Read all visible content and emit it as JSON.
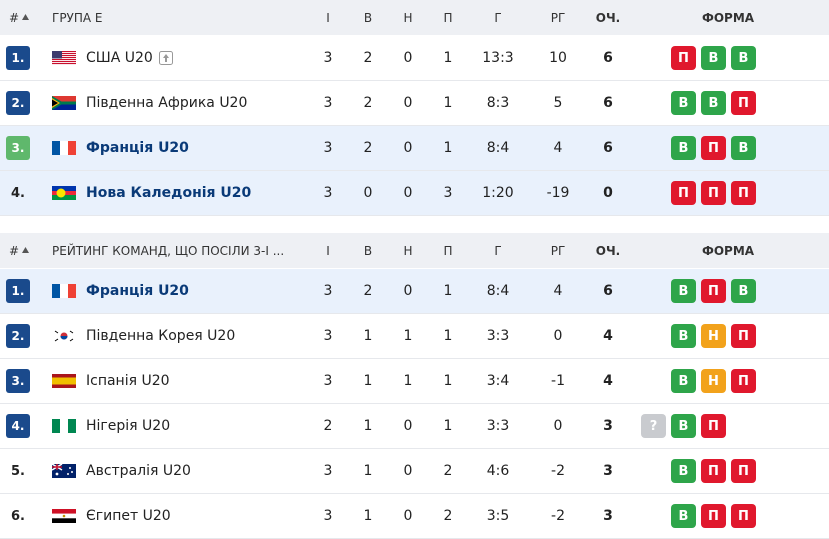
{
  "tables": [
    {
      "header": {
        "rank": "#",
        "title": "ГРУПА E",
        "cols": [
          "І",
          "В",
          "Н",
          "П",
          "Г",
          "РГ",
          "ОЧ.",
          "ФОРМА"
        ]
      },
      "rows": [
        {
          "rank": "1.",
          "team": "США U20",
          "stats": [
            "3",
            "2",
            "0",
            "1",
            "13:3",
            "10",
            "6"
          ],
          "form": [
            "П",
            "В",
            "В"
          ]
        },
        {
          "rank": "2.",
          "team": "Південна Африка U20",
          "stats": [
            "3",
            "2",
            "0",
            "1",
            "8:3",
            "5",
            "6"
          ],
          "form": [
            "В",
            "В",
            "П"
          ]
        },
        {
          "rank": "3.",
          "team": "Франція U20",
          "stats": [
            "3",
            "2",
            "0",
            "1",
            "8:4",
            "4",
            "6"
          ],
          "form": [
            "В",
            "П",
            "В"
          ]
        },
        {
          "rank": "4.",
          "team": "Нова Каледонія U20",
          "stats": [
            "3",
            "0",
            "0",
            "3",
            "1:20",
            "-19",
            "0"
          ],
          "form": [
            "П",
            "П",
            "П"
          ]
        }
      ]
    },
    {
      "header": {
        "rank": "#",
        "title": "РЕЙТИНГ КОМАНД, ЩО ПОСІЛИ 3-І ...",
        "cols": [
          "І",
          "В",
          "Н",
          "П",
          "Г",
          "РГ",
          "ОЧ.",
          "ФОРМА"
        ]
      },
      "rows": [
        {
          "rank": "1.",
          "team": "Франція U20",
          "stats": [
            "3",
            "2",
            "0",
            "1",
            "8:4",
            "4",
            "6"
          ],
          "form": [
            "В",
            "П",
            "В"
          ]
        },
        {
          "rank": "2.",
          "team": "Південна Корея U20",
          "stats": [
            "3",
            "1",
            "1",
            "1",
            "3:3",
            "0",
            "4"
          ],
          "form": [
            "В",
            "Н",
            "П"
          ]
        },
        {
          "rank": "3.",
          "team": "Іспанія U20",
          "stats": [
            "3",
            "1",
            "1",
            "1",
            "3:4",
            "-1",
            "4"
          ],
          "form": [
            "В",
            "Н",
            "П"
          ]
        },
        {
          "rank": "4.",
          "team": "Нігерія U20",
          "stats": [
            "2",
            "1",
            "0",
            "1",
            "3:3",
            "0",
            "3"
          ],
          "form": [
            "?",
            "В",
            "П"
          ]
        },
        {
          "rank": "5.",
          "team": "Австралія U20",
          "stats": [
            "3",
            "1",
            "0",
            "2",
            "4:6",
            "-2",
            "3"
          ],
          "form": [
            "В",
            "П",
            "П"
          ]
        },
        {
          "rank": "6.",
          "team": "Єгипет U20",
          "stats": [
            "3",
            "1",
            "0",
            "2",
            "3:5",
            "-2",
            "3"
          ],
          "form": [
            "В",
            "П",
            "П"
          ]
        }
      ]
    }
  ]
}
